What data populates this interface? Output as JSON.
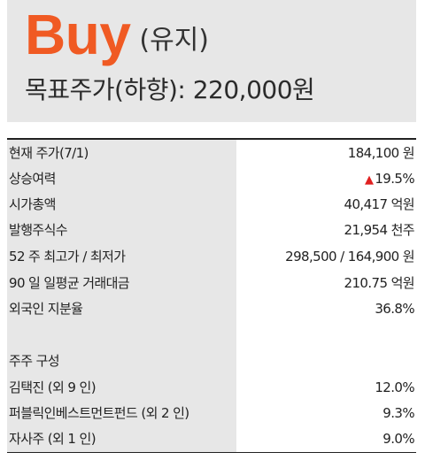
{
  "header": {
    "rating": "Buy",
    "rating_sub": "(유지)",
    "target_label": "목표주가(하향): 220,000원"
  },
  "stats": [
    {
      "label": "현재 주가(7/1)",
      "value": "184,100 원"
    },
    {
      "label": "상승여력",
      "value": "19.5%",
      "arrow": "▲"
    },
    {
      "label": "시가총액",
      "value": "40,417 억원"
    },
    {
      "label": "발행주식수",
      "value": "21,954 천주"
    },
    {
      "label": "52 주 최고가 / 최저가",
      "value": "298,500 / 164,900 원"
    },
    {
      "label": "90 일 일평균 거래대금",
      "value": "210.75 억원"
    },
    {
      "label": "외국인 지분율",
      "value": "36.8%"
    }
  ],
  "shareholders": {
    "title": "주주 구성",
    "items": [
      {
        "label": "김택진 (외 9 인)",
        "value": "12.0%"
      },
      {
        "label": "퍼블릭인베스트먼트펀드 (외 2 인)",
        "value": "9.3%"
      },
      {
        "label": "자사주 (외 1 인)",
        "value": "9.0%"
      }
    ]
  },
  "colors": {
    "rating": "#f05a23",
    "up_arrow": "#e02020",
    "panel": "#e7e7e7"
  }
}
